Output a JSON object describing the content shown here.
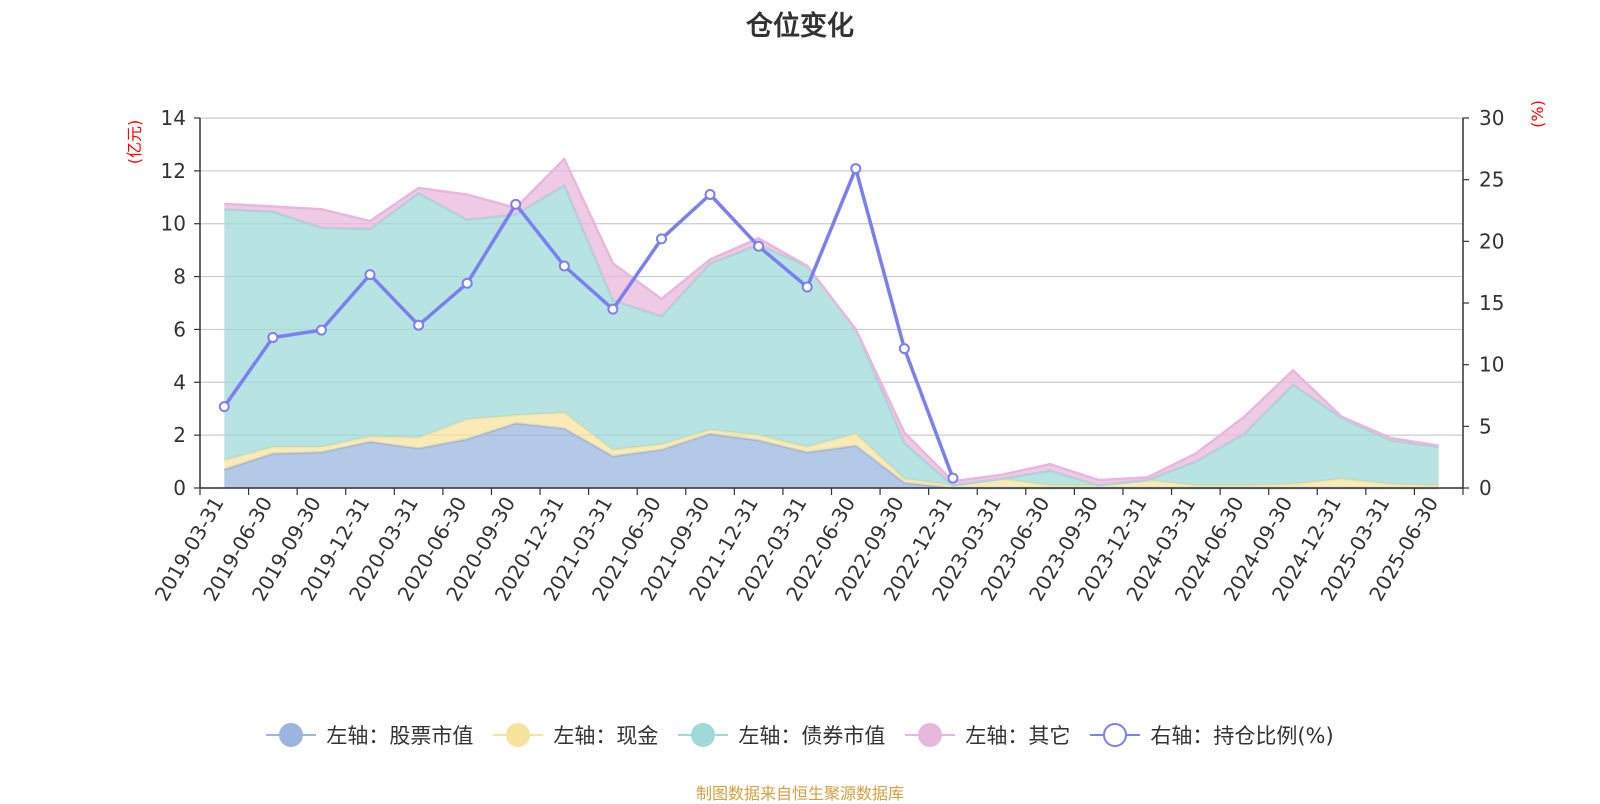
{
  "chart_data": {
    "type": "area",
    "title": "仓位变化",
    "left_axis": {
      "unit_label": "(亿元)",
      "ylim": [
        0,
        14
      ],
      "ticks": [
        0,
        2,
        4,
        6,
        8,
        10,
        12,
        14
      ]
    },
    "right_axis": {
      "unit_label": "(%)",
      "ylim": [
        0,
        30
      ],
      "ticks": [
        0,
        5,
        10,
        15,
        20,
        25,
        30
      ]
    },
    "x": [
      "2019-03-31",
      "2019-06-30",
      "2019-09-30",
      "2019-12-31",
      "2020-03-31",
      "2020-06-30",
      "2020-09-30",
      "2020-12-31",
      "2021-03-31",
      "2021-06-30",
      "2021-09-30",
      "2021-12-31",
      "2022-03-31",
      "2022-06-30",
      "2022-09-30",
      "2022-12-31",
      "2023-03-31",
      "2023-06-30",
      "2023-09-30",
      "2023-12-31",
      "2024-03-31",
      "2024-06-30",
      "2024-09-30",
      "2024-12-31",
      "2025-03-31",
      "2025-06-30"
    ],
    "grid": true,
    "legend_position": "bottom",
    "series": [
      {
        "name": "左轴：股票市值",
        "axis": "left",
        "kind": "stacked-area",
        "color": "#9bb5e0",
        "values": [
          0.7,
          1.3,
          1.35,
          1.75,
          1.5,
          1.85,
          2.45,
          2.25,
          1.2,
          1.45,
          2.05,
          1.8,
          1.35,
          1.6,
          0.2,
          0.0,
          0.0,
          0.0,
          0.0,
          0.0,
          0.0,
          0.0,
          0.0,
          0.0,
          0.0,
          0.0
        ]
      },
      {
        "name": "左轴：现金",
        "axis": "left",
        "kind": "stacked-area",
        "color": "#f7e3a0",
        "values": [
          0.35,
          0.25,
          0.2,
          0.2,
          0.4,
          0.75,
          0.3,
          0.6,
          0.25,
          0.2,
          0.15,
          0.2,
          0.2,
          0.45,
          0.15,
          0.1,
          0.35,
          0.1,
          0.1,
          0.3,
          0.1,
          0.1,
          0.15,
          0.35,
          0.15,
          0.1
        ]
      },
      {
        "name": "左轴：债券市值",
        "axis": "left",
        "kind": "stacked-area",
        "color": "#9fd9d9",
        "values": [
          9.5,
          8.9,
          8.3,
          7.85,
          9.25,
          7.55,
          7.6,
          8.6,
          5.65,
          4.85,
          6.3,
          7.2,
          6.85,
          3.95,
          1.35,
          0.0,
          0.0,
          0.55,
          0.0,
          0.0,
          0.9,
          1.95,
          3.75,
          2.3,
          1.65,
          1.45
        ]
      },
      {
        "name": "左轴：其它",
        "axis": "left",
        "kind": "stacked-area",
        "color": "#e8b8dc",
        "values": [
          0.2,
          0.2,
          0.7,
          0.3,
          0.2,
          0.95,
          0.25,
          1.0,
          1.4,
          0.65,
          0.15,
          0.25,
          0.0,
          0.0,
          0.4,
          0.15,
          0.15,
          0.25,
          0.2,
          0.1,
          0.3,
          0.65,
          0.55,
          0.05,
          0.1,
          0.05
        ]
      },
      {
        "name": "右轴：持仓比例(%)",
        "axis": "right",
        "kind": "line",
        "color": "#7b7fef",
        "values": [
          6.6,
          12.2,
          12.8,
          17.3,
          13.2,
          16.6,
          23.0,
          18.0,
          14.5,
          20.2,
          23.8,
          19.6,
          16.3,
          25.9,
          11.3,
          0.8,
          null,
          null,
          null,
          null,
          null,
          null,
          null,
          null,
          null,
          null
        ]
      }
    ]
  },
  "source_note": "制图数据来自恒生聚源数据库"
}
